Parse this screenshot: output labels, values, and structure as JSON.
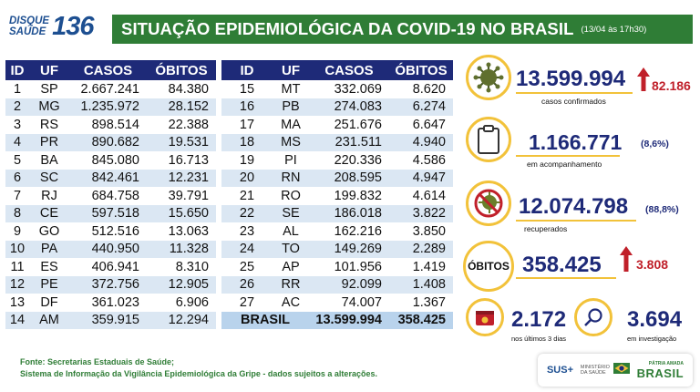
{
  "header": {
    "logo_top": "DISQUE",
    "logo_bottom": "SAÚDE",
    "logo_number": "136",
    "title": "SITUAÇÃO EPIDEMIOLÓGICA DA COVID-19 NO BRASIL",
    "date": "(13/04 às 17h30)"
  },
  "chart_data": {
    "type": "table",
    "columns": [
      "ID",
      "UF",
      "CASOS",
      "ÓBITOS"
    ],
    "rows_left": [
      [
        "1",
        "SP",
        "2.667.241",
        "84.380"
      ],
      [
        "2",
        "MG",
        "1.235.972",
        "28.152"
      ],
      [
        "3",
        "RS",
        "898.514",
        "22.388"
      ],
      [
        "4",
        "PR",
        "890.682",
        "19.531"
      ],
      [
        "5",
        "BA",
        "845.080",
        "16.713"
      ],
      [
        "6",
        "SC",
        "842.461",
        "12.231"
      ],
      [
        "7",
        "RJ",
        "684.758",
        "39.791"
      ],
      [
        "8",
        "CE",
        "597.518",
        "15.650"
      ],
      [
        "9",
        "GO",
        "512.516",
        "13.063"
      ],
      [
        "10",
        "PA",
        "440.950",
        "11.328"
      ],
      [
        "11",
        "ES",
        "406.941",
        "8.310"
      ],
      [
        "12",
        "PE",
        "372.756",
        "12.905"
      ],
      [
        "13",
        "DF",
        "361.023",
        "6.906"
      ],
      [
        "14",
        "AM",
        "359.915",
        "12.294"
      ]
    ],
    "rows_right": [
      [
        "15",
        "MT",
        "332.069",
        "8.620"
      ],
      [
        "16",
        "PB",
        "274.083",
        "6.274"
      ],
      [
        "17",
        "MA",
        "251.676",
        "6.647"
      ],
      [
        "18",
        "MS",
        "231.511",
        "4.940"
      ],
      [
        "19",
        "PI",
        "220.336",
        "4.586"
      ],
      [
        "20",
        "RN",
        "208.595",
        "4.947"
      ],
      [
        "21",
        "RO",
        "199.832",
        "4.614"
      ],
      [
        "22",
        "SE",
        "186.018",
        "3.822"
      ],
      [
        "23",
        "AL",
        "162.216",
        "3.850"
      ],
      [
        "24",
        "TO",
        "149.269",
        "2.289"
      ],
      [
        "25",
        "AP",
        "101.956",
        "1.419"
      ],
      [
        "26",
        "RR",
        "92.099",
        "1.408"
      ],
      [
        "27",
        "AC",
        "74.007",
        "1.367"
      ]
    ],
    "total": {
      "label": "BRASIL",
      "casos": "13.599.994",
      "obitos": "358.425"
    }
  },
  "stats": {
    "confirmed": {
      "value": "13.599.994",
      "increase": "82.186",
      "label": "casos confirmados",
      "icon": "virus-icon"
    },
    "monitoring": {
      "value": "1.166.771",
      "pct": "(8,6%)",
      "label": "em acompanhamento",
      "icon": "clipboard-icon"
    },
    "recovered": {
      "value": "12.074.798",
      "pct": "(88,8%)",
      "label": "recuperados",
      "icon": "no-virus-icon"
    },
    "deaths": {
      "badge": "ÓBITOS",
      "value": "358.425",
      "increase": "3.808"
    },
    "last_days": {
      "value": "2.172",
      "label": "nos últimos 3 dias",
      "icon": "calendar-icon"
    },
    "investigation": {
      "value": "3.694",
      "label": "em investigação",
      "icon": "magnifier-icon"
    }
  },
  "footer": {
    "line1": "Fonte: Secretarias Estaduais de Saúde;",
    "line2": "Sistema de Informação da Vigilância Epidemiológica da Gripe - dados sujeitos a alterações.",
    "sus": "SUS",
    "ministry": "MINISTÉRIO DA SAÚDE",
    "country_top": "PÁTRIA AMADA",
    "country": "BRASIL"
  },
  "colors": {
    "green": "#2f7d36",
    "navy": "#1e2a78",
    "gold": "#f2c23a",
    "red": "#c0202a",
    "row_alt": "#dbe7f3"
  }
}
